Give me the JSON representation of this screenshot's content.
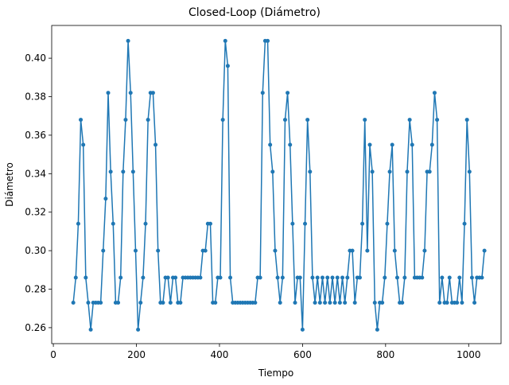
{
  "chart_data": {
    "type": "line",
    "title": "Closed-Loop (Diámetro)",
    "x_label": "Tiempo",
    "y_label": "Diámetro",
    "x": [
      48,
      54,
      60,
      66,
      72,
      78,
      84,
      90,
      96,
      102,
      108,
      114,
      120,
      126,
      132,
      138,
      144,
      150,
      156,
      162,
      168,
      174,
      180,
      186,
      192,
      198,
      204,
      210,
      216,
      222,
      228,
      234,
      240,
      246,
      252,
      258,
      264,
      270,
      276,
      282,
      288,
      294,
      300,
      306,
      312,
      318,
      324,
      330,
      336,
      342,
      348,
      354,
      360,
      366,
      372,
      378,
      384,
      390,
      396,
      402,
      408,
      414,
      420,
      426,
      432,
      438,
      444,
      450,
      456,
      462,
      468,
      474,
      480,
      486,
      492,
      498,
      504,
      510,
      516,
      522,
      528,
      534,
      540,
      546,
      552,
      558,
      564,
      570,
      576,
      582,
      588,
      594,
      600,
      606,
      612,
      618,
      624,
      630,
      636,
      642,
      648,
      654,
      660,
      666,
      672,
      678,
      684,
      690,
      696,
      702,
      708,
      714,
      720,
      726,
      732,
      738,
      744,
      750,
      756,
      762,
      768,
      774,
      780,
      786,
      792,
      798,
      804,
      810,
      816,
      822,
      828,
      834,
      840,
      846,
      852,
      858,
      864,
      870,
      876,
      882,
      888,
      894,
      900,
      906,
      912,
      918,
      924,
      930,
      936,
      942,
      948,
      954,
      960,
      966,
      972,
      978,
      984,
      990,
      996,
      1002,
      1008,
      1014,
      1020,
      1026,
      1032,
      1038
    ],
    "series": [
      {
        "name": "Diámetro",
        "color": "#1f77b4",
        "values": [
          0.273,
          0.286,
          0.314,
          0.368,
          0.355,
          0.286,
          0.273,
          0.259,
          0.273,
          0.273,
          0.273,
          0.273,
          0.3,
          0.327,
          0.382,
          0.341,
          0.314,
          0.273,
          0.273,
          0.286,
          0.341,
          0.368,
          0.409,
          0.382,
          0.341,
          0.3,
          0.259,
          0.273,
          0.286,
          0.314,
          0.368,
          0.382,
          0.382,
          0.355,
          0.3,
          0.273,
          0.273,
          0.286,
          0.286,
          0.273,
          0.286,
          0.286,
          0.273,
          0.273,
          0.286,
          0.286,
          0.286,
          0.286,
          0.286,
          0.286,
          0.286,
          0.286,
          0.3,
          0.3,
          0.314,
          0.314,
          0.273,
          0.273,
          0.286,
          0.286,
          0.368,
          0.409,
          0.396,
          0.286,
          0.273,
          0.273,
          0.273,
          0.273,
          0.273,
          0.273,
          0.273,
          0.273,
          0.273,
          0.273,
          0.286,
          0.286,
          0.382,
          0.409,
          0.409,
          0.355,
          0.341,
          0.3,
          0.286,
          0.273,
          0.286,
          0.368,
          0.382,
          0.355,
          0.314,
          0.273,
          0.286,
          0.286,
          0.259,
          0.314,
          0.368,
          0.341,
          0.286,
          0.273,
          0.286,
          0.273,
          0.286,
          0.273,
          0.286,
          0.273,
          0.286,
          0.273,
          0.286,
          0.273,
          0.286,
          0.273,
          0.286,
          0.3,
          0.3,
          0.273,
          0.286,
          0.286,
          0.314,
          0.368,
          0.3,
          0.355,
          0.341,
          0.273,
          0.259,
          0.273,
          0.273,
          0.286,
          0.314,
          0.341,
          0.355,
          0.3,
          0.286,
          0.273,
          0.273,
          0.286,
          0.341,
          0.368,
          0.355,
          0.286,
          0.286,
          0.286,
          0.286,
          0.3,
          0.341,
          0.341,
          0.355,
          0.382,
          0.368,
          0.273,
          0.286,
          0.273,
          0.273,
          0.286,
          0.273,
          0.273,
          0.273,
          0.286,
          0.273,
          0.314,
          0.368,
          0.341,
          0.286,
          0.273,
          0.286,
          0.286,
          0.286,
          0.3
        ]
      }
    ],
    "xlim": [
      -4,
      1078
    ],
    "ylim": [
      0.2517,
      0.417
    ],
    "xticks": [
      0,
      200,
      400,
      600,
      800,
      1000
    ],
    "yticks": [
      0.26,
      0.28,
      {
        "value": 0.3,
        "label": "0.30"
      },
      0.32,
      0.34,
      0.36,
      0.38,
      {
        "value": 0.4,
        "label": "0.40"
      }
    ]
  }
}
